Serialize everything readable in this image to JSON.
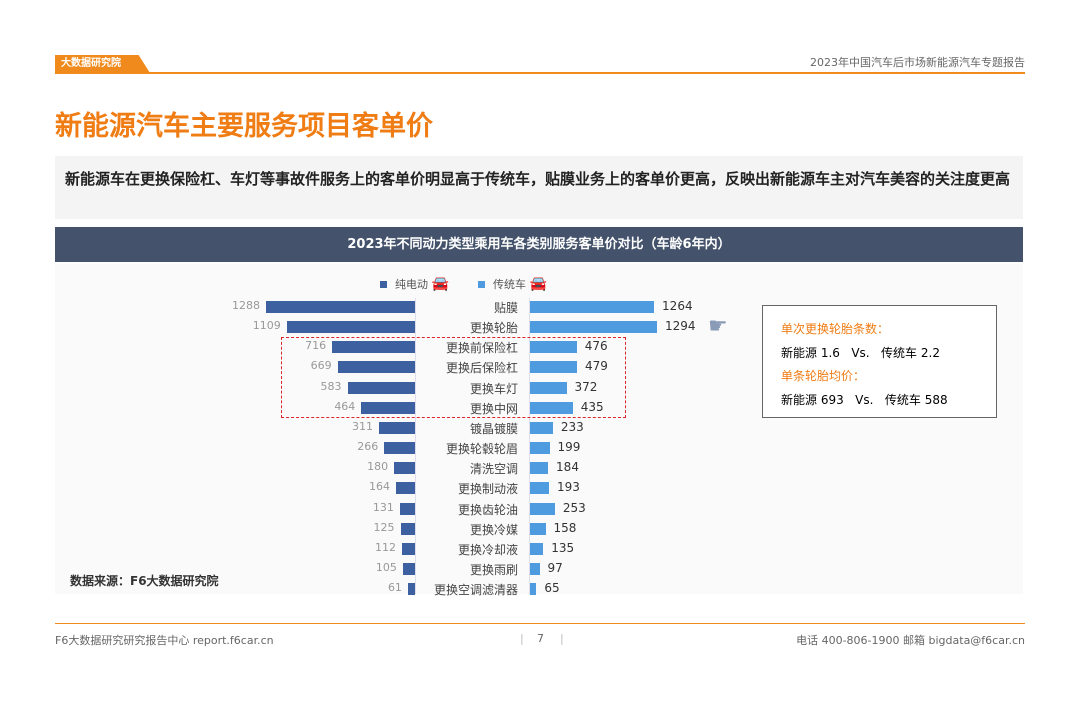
{
  "header": {
    "logo_text": "大数据研究院",
    "report_title": "2023年中国汽车后市场新能源汽车专题报告"
  },
  "page_title": "新能源汽车主要服务项目客单价",
  "summary": "新能源车在更换保险杠、车灯等事故件服务上的客单价明显高于传统车，贴膜业务上的客单价更高，反映出新能源车主对汽车美容的关注度更高",
  "chart_data": {
    "type": "bar",
    "orientation": "horizontal-butterfly",
    "title": "2023年不同动力类型乘用车各类别服务客单价对比（车龄6年内）",
    "categories": [
      "贴膜",
      "更换轮胎",
      "更换前保险杠",
      "更换后保险杠",
      "更换车灯",
      "更换中网",
      "镀晶镀膜",
      "更换轮毂轮眉",
      "清洗空调",
      "更换制动液",
      "更换齿轮油",
      "更换冷媒",
      "更换冷却液",
      "更换雨刷",
      "更换空调滤清器"
    ],
    "series": [
      {
        "name": "纯电动",
        "color": "#3d61a0",
        "values": [
          1288,
          1109,
          716,
          669,
          583,
          464,
          311,
          266,
          180,
          164,
          131,
          125,
          112,
          105,
          61
        ]
      },
      {
        "name": "传统车",
        "color": "#4f9be0",
        "values": [
          1264,
          1294,
          476,
          479,
          372,
          435,
          233,
          199,
          184,
          193,
          253,
          158,
          135,
          97,
          65
        ]
      }
    ],
    "legend": "top-center",
    "highlighted_categories": [
      "更换前保险杠",
      "更换后保险杠",
      "更换车灯",
      "更换中网"
    ],
    "highlight_color": "#d9262c"
  },
  "info_box": {
    "heading1": "单次更换轮胎条数：",
    "line1": "新能源 1.6   Vs.   传统车 2.2",
    "heading2": "单条轮胎均价：",
    "line2": "新能源 693   Vs.   传统车 588"
  },
  "source": "数据来源：F6大数据研究院",
  "footer": {
    "left": "F6大数据研究研究报告中心 report.f6car.cn",
    "page": "7",
    "right": "电话 400-806-1900  邮箱 bigdata@f6car.cn"
  }
}
